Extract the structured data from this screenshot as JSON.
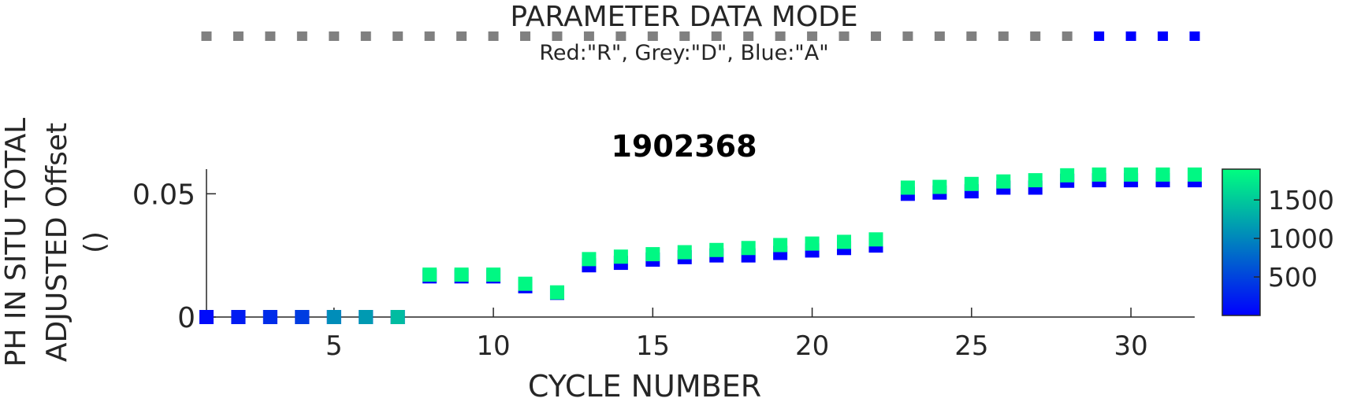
{
  "mode_panel": {
    "title": "PARAMETER DATA MODE",
    "legend": "Red:\"R\", Grey:\"D\", Blue:\"A\"",
    "colors": {
      "R": "#ff0000",
      "D": "#808080",
      "A": "#0000ff"
    },
    "cycles": [
      1,
      2,
      3,
      4,
      5,
      6,
      7,
      8,
      9,
      10,
      11,
      12,
      13,
      14,
      15,
      16,
      17,
      18,
      19,
      20,
      21,
      22,
      23,
      24,
      25,
      26,
      27,
      28,
      29,
      30,
      31,
      32
    ],
    "modes": [
      "D",
      "D",
      "D",
      "D",
      "D",
      "D",
      "D",
      "D",
      "D",
      "D",
      "D",
      "D",
      "D",
      "D",
      "D",
      "D",
      "D",
      "D",
      "D",
      "D",
      "D",
      "D",
      "D",
      "D",
      "D",
      "D",
      "D",
      "D",
      "A",
      "A",
      "A",
      "A"
    ]
  },
  "chart_data": {
    "type": "scatter",
    "title": "1902368",
    "xlabel": "CYCLE NUMBER",
    "ylabel_lines": [
      "PH IN SITU TOTAL",
      "ADJUSTED Offset",
      "()"
    ],
    "xlim": [
      1,
      32
    ],
    "ylim": [
      0,
      0.06
    ],
    "xticks": [
      5,
      10,
      15,
      20,
      25,
      30
    ],
    "yticks": [
      0,
      0.05
    ],
    "ytick_labels": [
      "0",
      "0.05"
    ],
    "colorbar": {
      "ticks": [
        500,
        1000,
        1500
      ],
      "range": [
        0,
        1900
      ],
      "colormap": "winter"
    },
    "series": [
      {
        "x": [
          1,
          2,
          3,
          4,
          5,
          6,
          7,
          8,
          9,
          10,
          11,
          12,
          13,
          14,
          15,
          16,
          17,
          18,
          19,
          20,
          21,
          22,
          23,
          24,
          25,
          26,
          27,
          28,
          29,
          30,
          31,
          32
        ],
        "y": [
          0,
          0,
          0,
          0,
          0,
          0,
          0,
          0.0165,
          0.0165,
          0.0165,
          0.0125,
          0.0098,
          0.021,
          0.022,
          0.0233,
          0.0243,
          0.025,
          0.025,
          0.026,
          0.027,
          0.028,
          0.029,
          0.05,
          0.0505,
          0.051,
          0.0525,
          0.0525,
          0.0553,
          0.0555,
          0.0555,
          0.0555,
          0.0555
        ],
        "c": [
          0,
          0,
          0,
          0,
          0,
          0,
          0,
          0,
          0,
          0,
          0,
          0,
          0,
          0,
          0,
          0,
          0,
          0,
          0,
          0,
          0,
          0,
          0,
          0,
          0,
          0,
          0,
          0,
          0,
          0,
          0,
          0
        ]
      },
      {
        "x": [
          1,
          2,
          3,
          4,
          5,
          6,
          7,
          8,
          9,
          10,
          11,
          12,
          13,
          14,
          15,
          16,
          17,
          18,
          19,
          20,
          21,
          22,
          23,
          24,
          25,
          26,
          27,
          28,
          29,
          30,
          31,
          32
        ],
        "y": [
          0,
          0,
          0,
          0,
          0,
          0,
          0,
          0.0172,
          0.0172,
          0.0172,
          0.0135,
          0.01,
          0.0235,
          0.0245,
          0.0255,
          0.0263,
          0.0272,
          0.028,
          0.0292,
          0.0298,
          0.0305,
          0.0315,
          0.0525,
          0.0528,
          0.054,
          0.055,
          0.0555,
          0.0575,
          0.0578,
          0.0578,
          0.0578,
          0.0578
        ],
        "c": [
          80,
          200,
          330,
          450,
          1050,
          1150,
          1400,
          1850,
          1850,
          1850,
          1850,
          1850,
          1850,
          1850,
          1850,
          1850,
          1850,
          1850,
          1850,
          1850,
          1850,
          1850,
          1850,
          1850,
          1850,
          1850,
          1850,
          1850,
          1850,
          1850,
          1850,
          1850
        ]
      }
    ]
  }
}
